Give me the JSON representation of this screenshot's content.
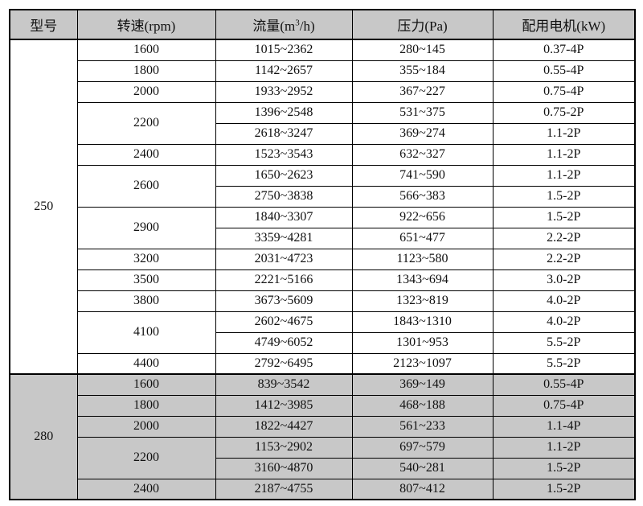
{
  "colors": {
    "header_bg": "#c8c8c8",
    "shaded_section_bg": "#c8c8c8",
    "border": "#000000",
    "page_bg": "#ffffff"
  },
  "table": {
    "columns": [
      {
        "key": "model",
        "label": "型号"
      },
      {
        "key": "speed",
        "label": "转速(rpm)"
      },
      {
        "key": "flow",
        "label_pre": "流量(m",
        "sup": "3",
        "label_post": "/h)"
      },
      {
        "key": "pressure",
        "label": "压力(Pa)"
      },
      {
        "key": "motor",
        "label": "配用电机(kW)"
      }
    ],
    "sections": [
      {
        "model": "250",
        "shaded": false,
        "groups": [
          {
            "speed": "1600",
            "rows": [
              {
                "flow": "1015~2362",
                "pressure": "280~145",
                "motor": "0.37-4P"
              }
            ]
          },
          {
            "speed": "1800",
            "rows": [
              {
                "flow": "1142~2657",
                "pressure": "355~184",
                "motor": "0.55-4P"
              }
            ]
          },
          {
            "speed": "2000",
            "rows": [
              {
                "flow": "1933~2952",
                "pressure": "367~227",
                "motor": "0.75-4P"
              }
            ]
          },
          {
            "speed": "2200",
            "rows": [
              {
                "flow": "1396~2548",
                "pressure": "531~375",
                "motor": "0.75-2P"
              },
              {
                "flow": "2618~3247",
                "pressure": "369~274",
                "motor": "1.1-2P"
              }
            ]
          },
          {
            "speed": "2400",
            "rows": [
              {
                "flow": "1523~3543",
                "pressure": "632~327",
                "motor": "1.1-2P"
              }
            ]
          },
          {
            "speed": "2600",
            "rows": [
              {
                "flow": "1650~2623",
                "pressure": "741~590",
                "motor": "1.1-2P"
              },
              {
                "flow": "2750~3838",
                "pressure": "566~383",
                "motor": "1.5-2P"
              }
            ]
          },
          {
            "speed": "2900",
            "rows": [
              {
                "flow": "1840~3307",
                "pressure": "922~656",
                "motor": "1.5-2P"
              },
              {
                "flow": "3359~4281",
                "pressure": "651~477",
                "motor": "2.2-2P"
              }
            ]
          },
          {
            "speed": "3200",
            "rows": [
              {
                "flow": "2031~4723",
                "pressure": "1123~580",
                "motor": "2.2-2P"
              }
            ]
          },
          {
            "speed": "3500",
            "rows": [
              {
                "flow": "2221~5166",
                "pressure": "1343~694",
                "motor": "3.0-2P"
              }
            ]
          },
          {
            "speed": "3800",
            "rows": [
              {
                "flow": "3673~5609",
                "pressure": "1323~819",
                "motor": "4.0-2P"
              }
            ]
          },
          {
            "speed": "4100",
            "rows": [
              {
                "flow": "2602~4675",
                "pressure": "1843~1310",
                "motor": "4.0-2P"
              },
              {
                "flow": "4749~6052",
                "pressure": "1301~953",
                "motor": "5.5-2P"
              }
            ]
          },
          {
            "speed": "4400",
            "rows": [
              {
                "flow": "2792~6495",
                "pressure": "2123~1097",
                "motor": "5.5-2P"
              }
            ]
          }
        ]
      },
      {
        "model": "280",
        "shaded": true,
        "groups": [
          {
            "speed": "1600",
            "rows": [
              {
                "flow": "839~3542",
                "pressure": "369~149",
                "motor": "0.55-4P"
              }
            ]
          },
          {
            "speed": "1800",
            "rows": [
              {
                "flow": "1412~3985",
                "pressure": "468~188",
                "motor": "0.75-4P"
              }
            ]
          },
          {
            "speed": "2000",
            "rows": [
              {
                "flow": "1822~4427",
                "pressure": "561~233",
                "motor": "1.1-4P"
              }
            ]
          },
          {
            "speed": "2200",
            "rows": [
              {
                "flow": "1153~2902",
                "pressure": "697~579",
                "motor": "1.1-2P"
              },
              {
                "flow": "3160~4870",
                "pressure": "540~281",
                "motor": "1.5-2P"
              }
            ]
          },
          {
            "speed": "2400",
            "rows": [
              {
                "flow": "2187~4755",
                "pressure": "807~412",
                "motor": "1.5-2P"
              }
            ]
          }
        ]
      }
    ]
  }
}
